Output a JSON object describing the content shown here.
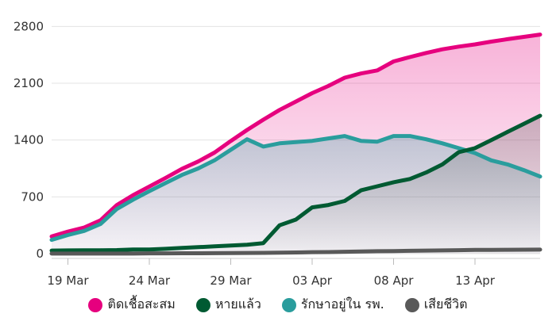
{
  "chart_data": {
    "type": "line",
    "x": [
      "18 Mar",
      "19 Mar",
      "20 Mar",
      "21 Mar",
      "22 Mar",
      "23 Mar",
      "24 Mar",
      "25 Mar",
      "26 Mar",
      "27 Mar",
      "28 Mar",
      "29 Mar",
      "30 Mar",
      "31 Mar",
      "01 Apr",
      "02 Apr",
      "03 Apr",
      "04 Apr",
      "05 Apr",
      "06 Apr",
      "07 Apr",
      "08 Apr",
      "09 Apr",
      "10 Apr",
      "11 Apr",
      "12 Apr",
      "13 Apr",
      "14 Apr",
      "15 Apr",
      "16 Apr",
      "17 Apr"
    ],
    "x_tick_labels": [
      "19 Mar",
      "24 Mar",
      "29 Mar",
      "03 Apr",
      "08 Apr",
      "13 Apr"
    ],
    "y_ticks": [
      0,
      700,
      1400,
      2100,
      2800
    ],
    "ylim": [
      0,
      2950
    ],
    "legend_position": "bottom",
    "grid": true,
    "series": [
      {
        "name": "ติดเชื้อสะสม",
        "color": "#e6007e",
        "values": [
          212,
          272,
          322,
          411,
          599,
          721,
          827,
          934,
          1045,
          1136,
          1245,
          1388,
          1524,
          1651,
          1771,
          1875,
          1978,
          2067,
          2169,
          2220,
          2258,
          2369,
          2423,
          2473,
          2518,
          2551,
          2579,
          2613,
          2643,
          2672,
          2700
        ]
      },
      {
        "name": "หายแล้ว",
        "color": "#005a32",
        "values": [
          38,
          40,
          41,
          42,
          44,
          52,
          52,
          60,
          70,
          80,
          90,
          100,
          110,
          130,
          350,
          420,
          570,
          600,
          650,
          780,
          830,
          880,
          920,
          1000,
          1100,
          1250,
          1300,
          1400,
          1500,
          1600,
          1700
        ]
      },
      {
        "name": "รักษาอยู่ใน รพ.",
        "color": "#2a9d9d",
        "values": [
          170,
          230,
          280,
          365,
          550,
          665,
          770,
          870,
          970,
          1050,
          1150,
          1280,
          1410,
          1320,
          1360,
          1375,
          1390,
          1420,
          1450,
          1390,
          1380,
          1450,
          1450,
          1410,
          1360,
          1300,
          1240,
          1150,
          1100,
          1030,
          950
        ]
      },
      {
        "name": "เสียชีวิต",
        "color": "#595959",
        "values": [
          1,
          1,
          1,
          1,
          1,
          1,
          4,
          4,
          5,
          5,
          6,
          7,
          9,
          10,
          12,
          15,
          19,
          20,
          23,
          26,
          30,
          32,
          35,
          38,
          40,
          43,
          46,
          47,
          48,
          49,
          50
        ]
      }
    ]
  }
}
